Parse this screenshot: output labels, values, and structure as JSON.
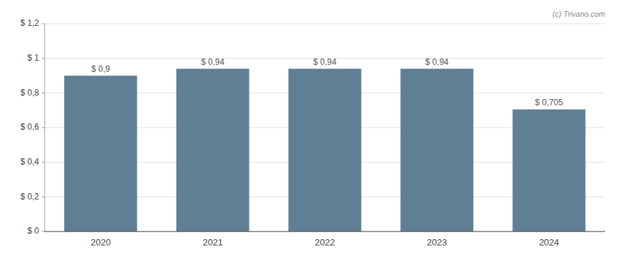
{
  "chart_data": {
    "type": "bar",
    "categories": [
      "2020",
      "2021",
      "2022",
      "2023",
      "2024"
    ],
    "values": [
      0.9,
      0.94,
      0.94,
      0.94,
      0.705
    ],
    "value_labels": [
      "$ 0,9",
      "$ 0,94",
      "$ 0,94",
      "$ 0,94",
      "$ 0,705"
    ],
    "data_labels": true,
    "color": "#5f7f95",
    "ylim": [
      0,
      1.2
    ],
    "yticks": [
      {
        "value": 0,
        "label": "$ 0"
      },
      {
        "value": 0.2,
        "label": "$ 0,2"
      },
      {
        "value": 0.4,
        "label": "$ 0,4"
      },
      {
        "value": 0.6,
        "label": "$ 0,6"
      },
      {
        "value": 0.8,
        "label": "$ 0,8"
      },
      {
        "value": 1.0,
        "label": "$ 1"
      },
      {
        "value": 1.2,
        "label": "$ 1,2"
      }
    ],
    "grid": true,
    "annotations": [
      "(c) Trivano.com"
    ]
  }
}
